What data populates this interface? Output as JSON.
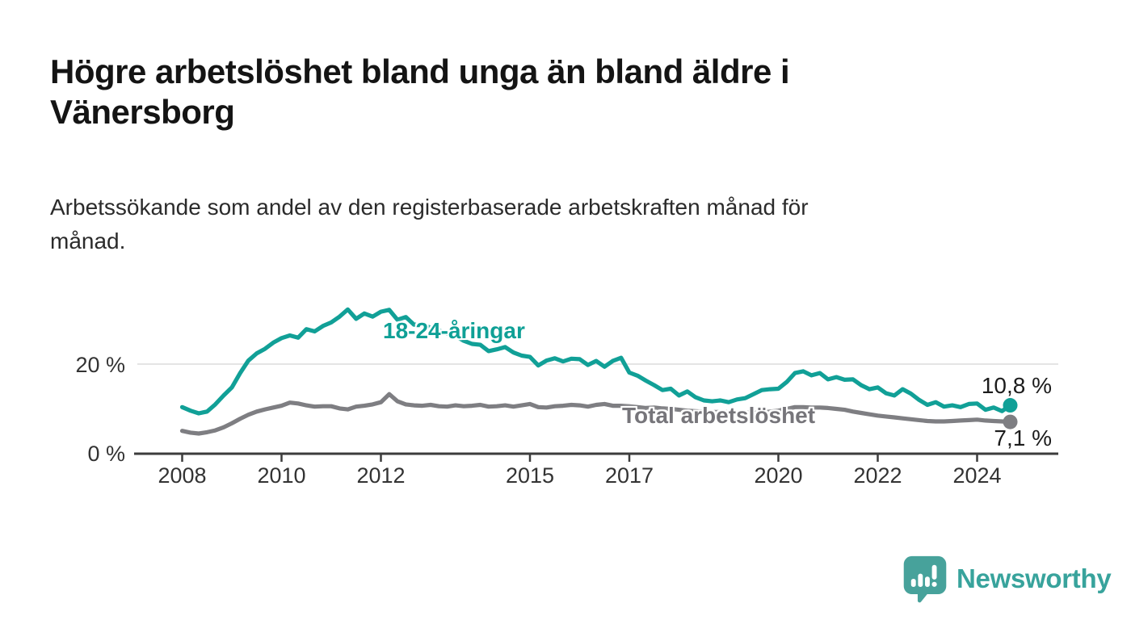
{
  "header": {
    "title": "Högre arbetslöshet bland unga än bland äldre i Vänersborg",
    "subtitle": "Arbetssökande som andel av den registerbaserade arbetskraften månad för månad."
  },
  "chart_data": {
    "type": "line",
    "title": "Högre arbetslöshet bland unga än bland äldre i Vänersborg",
    "xlabel": "",
    "ylabel": "Arbetssökande som andel av den registerbaserade arbetskraften",
    "x_unit": "year (monthly data)",
    "x_start_year": 2008.0,
    "x_step_years": 0.1666667,
    "xlim": [
      2007.0,
      2025.6
    ],
    "ylim": [
      0,
      36
    ],
    "grid": "single horizontal gridline at 20 %",
    "legend_position": "inline series labels",
    "xticks": [
      {
        "year": 2008,
        "label": "2008"
      },
      {
        "year": 2010,
        "label": "2010"
      },
      {
        "year": 2012,
        "label": "2012"
      },
      {
        "year": 2015,
        "label": "2015"
      },
      {
        "year": 2017,
        "label": "2017"
      },
      {
        "year": 2020,
        "label": "2020"
      },
      {
        "year": 2022,
        "label": "2022"
      },
      {
        "year": 2024,
        "label": "2024"
      }
    ],
    "yticks": [
      {
        "value": 0,
        "label": "0 %"
      },
      {
        "value": 20,
        "label": "20 %"
      }
    ],
    "series": [
      {
        "name": "18-24-åringar",
        "color": "#11a097",
        "end_label": "10,8 %",
        "end_value": 10.8,
        "values": [
          10.4,
          9.6,
          9.0,
          9.4,
          11.0,
          13.0,
          14.8,
          18.0,
          20.8,
          22.4,
          23.4,
          24.8,
          25.8,
          26.4,
          25.9,
          27.8,
          27.3,
          28.5,
          29.3,
          30.6,
          32.2,
          30.1,
          31.3,
          30.6,
          31.7,
          32.1,
          29.9,
          30.5,
          28.8,
          28.9,
          28.1,
          27.5,
          26.8,
          26.3,
          25.2,
          24.5,
          24.3,
          22.9,
          23.3,
          23.8,
          22.6,
          21.9,
          21.6,
          19.7,
          20.8,
          21.3,
          20.6,
          21.2,
          21.1,
          19.8,
          20.7,
          19.4,
          20.7,
          21.4,
          18.1,
          17.4,
          16.3,
          15.3,
          14.2,
          14.5,
          13.0,
          13.9,
          12.6,
          11.9,
          11.7,
          11.9,
          11.5,
          12.1,
          12.4,
          13.3,
          14.2,
          14.4,
          14.5,
          16.0,
          18.0,
          18.4,
          17.5,
          18.0,
          16.6,
          17.1,
          16.5,
          16.6,
          15.3,
          14.4,
          14.8,
          13.5,
          13.0,
          14.4,
          13.4,
          12.0,
          10.9,
          11.5,
          10.5,
          10.8,
          10.4,
          11.1,
          11.2,
          9.8,
          10.3,
          9.5,
          10.8
        ]
      },
      {
        "name": "Total arbetslöshet",
        "color": "#7e7e82",
        "end_label": "7,1 %",
        "end_value": 7.1,
        "values": [
          5.1,
          4.7,
          4.5,
          4.8,
          5.2,
          5.9,
          6.8,
          7.8,
          8.7,
          9.4,
          9.9,
          10.3,
          10.7,
          11.4,
          11.2,
          10.8,
          10.5,
          10.6,
          10.6,
          10.1,
          9.9,
          10.5,
          10.7,
          11.0,
          11.5,
          13.3,
          11.7,
          11.0,
          10.8,
          10.7,
          10.9,
          10.6,
          10.5,
          10.8,
          10.6,
          10.7,
          10.9,
          10.5,
          10.6,
          10.8,
          10.5,
          10.8,
          11.1,
          10.4,
          10.3,
          10.6,
          10.7,
          10.9,
          10.8,
          10.5,
          10.9,
          11.1,
          10.7,
          10.7,
          10.6,
          10.4,
          10.2,
          10.3,
          10.1,
          10.0,
          9.8,
          9.6,
          9.5,
          9.4,
          9.3,
          9.3,
          9.3,
          9.2,
          9.2,
          9.1,
          9.2,
          9.4,
          9.6,
          10.0,
          10.4,
          10.4,
          10.3,
          10.3,
          10.2,
          10.0,
          9.8,
          9.4,
          9.1,
          8.8,
          8.5,
          8.3,
          8.1,
          7.9,
          7.7,
          7.5,
          7.3,
          7.2,
          7.2,
          7.3,
          7.4,
          7.5,
          7.6,
          7.4,
          7.3,
          7.2,
          7.1
        ]
      }
    ]
  },
  "footer": {
    "brand": "Newsworthy",
    "logo_icon": "speech-bubble-bar-chart-icon",
    "brand_color": "#38a39c"
  }
}
